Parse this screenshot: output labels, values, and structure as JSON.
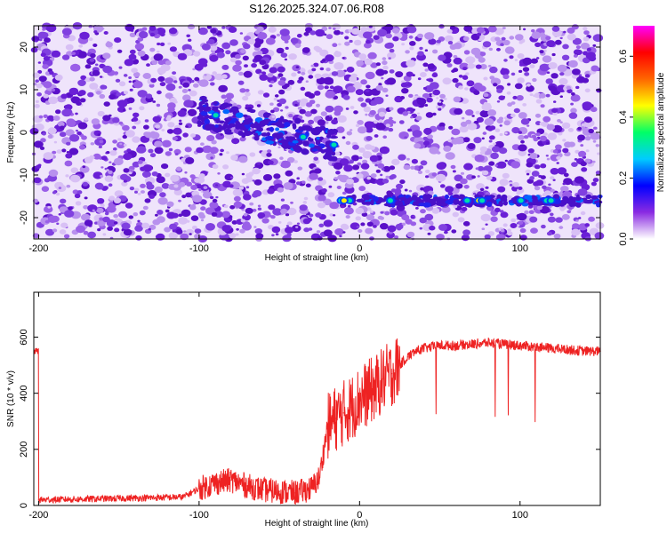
{
  "title": "S126.2025.324.07.06.R08",
  "chart_data": [
    {
      "type": "heatmap",
      "xlabel": "Height of straight line (km)",
      "ylabel": "Frequency (Hz)",
      "xlim": [
        -203,
        150
      ],
      "ylim": [
        -25,
        25
      ],
      "xticks": [
        -200,
        -100,
        0,
        100
      ],
      "yticks": [
        -20,
        -10,
        0,
        10,
        20
      ],
      "colorbar": {
        "label": "Normalized spectral amplitude",
        "range": [
          0,
          0.7
        ],
        "ticks": [
          "0.0",
          "0.2",
          "0.4",
          "0.6"
        ],
        "tick_values": [
          0,
          0.2,
          0.4,
          0.6
        ],
        "colors": [
          "#ffffff",
          "#8a2be2",
          "#0000ff",
          "#00ccff",
          "#00ff66",
          "#ffff00",
          "#ff6600",
          "#ff0000",
          "#ff00ff"
        ]
      },
      "features": [
        {
          "x_start": -12,
          "x_end": 150,
          "frequency": -16,
          "amplitude": 0.3
        },
        {
          "x_start": -100,
          "x_end": -15,
          "frequency_start": 5,
          "frequency_end": -3,
          "amplitude": 0.2
        }
      ]
    },
    {
      "type": "line",
      "xlabel": "Height of straight line (km)",
      "ylabel": "SNR (10 * v/v)",
      "xlim": [
        -203,
        150
      ],
      "ylim": [
        0,
        760
      ],
      "xticks": [
        -200,
        -100,
        0,
        100
      ],
      "yticks": [
        0,
        200,
        400,
        600
      ],
      "color": "#ee2222",
      "x": [
        -200,
        -150,
        -110,
        -100,
        -90,
        -80,
        -70,
        -60,
        -50,
        -40,
        -30,
        -25,
        -20,
        -15,
        -10,
        -5,
        0,
        5,
        10,
        15,
        20,
        25,
        30,
        35,
        40,
        50,
        60,
        70,
        80,
        90,
        100,
        110,
        120,
        130,
        140,
        150
      ],
      "values": [
        20,
        25,
        30,
        60,
        80,
        90,
        70,
        55,
        50,
        45,
        60,
        100,
        280,
        310,
        330,
        350,
        380,
        400,
        420,
        450,
        470,
        500,
        530,
        550,
        560,
        570,
        570,
        575,
        580,
        575,
        570,
        565,
        560,
        555,
        550,
        550
      ]
    }
  ]
}
